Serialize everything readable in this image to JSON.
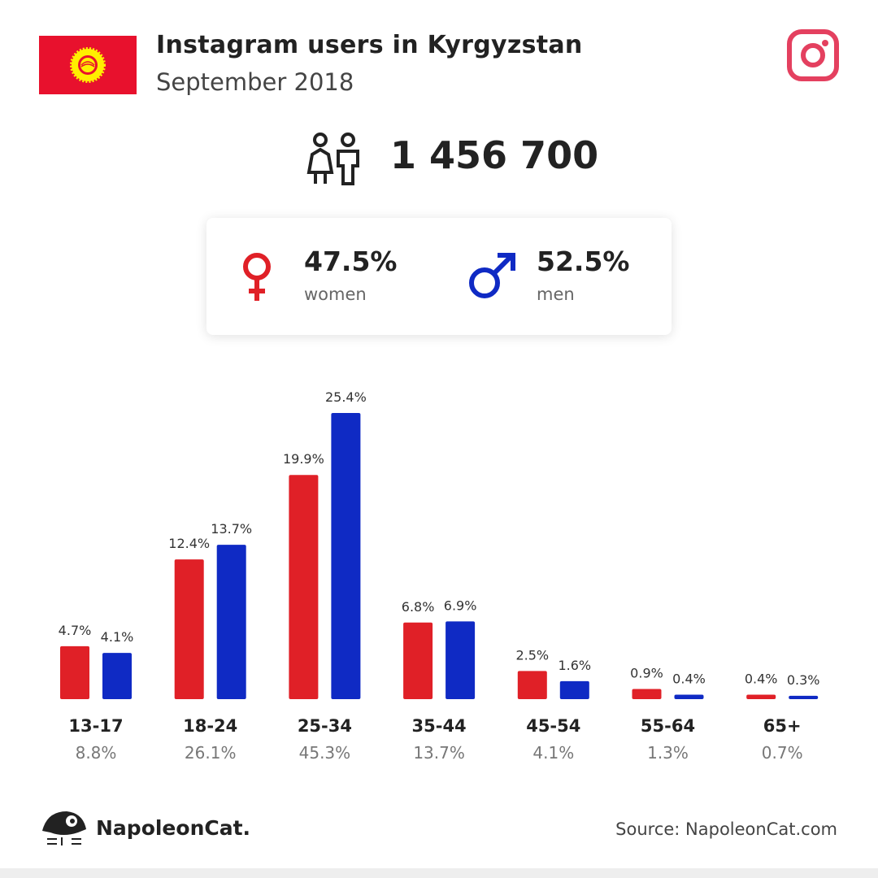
{
  "header": {
    "title": "Instagram users in Kyrgyzstan",
    "subtitle": "September 2018",
    "total": "1 456 700"
  },
  "gender": {
    "women": {
      "percent": "47.5%",
      "label": "women",
      "color": "#e02027"
    },
    "men": {
      "percent": "52.5%",
      "label": "men",
      "color": "#0f2ac4"
    }
  },
  "chart_data": {
    "type": "bar",
    "categories": [
      "13-17",
      "18-24",
      "25-34",
      "35-44",
      "45-54",
      "55-64",
      "65+"
    ],
    "totals": [
      "8.8%",
      "26.1%",
      "45.3%",
      "13.7%",
      "4.1%",
      "1.3%",
      "0.7%"
    ],
    "series": [
      {
        "color": "#e02027",
        "values": [
          4.7,
          12.4,
          19.9,
          6.8,
          2.5,
          0.9,
          0.4
        ],
        "value_labels": [
          "4.7%",
          "12.4%",
          "19.9%",
          "6.8%",
          "2.5%",
          "0.9%",
          "0.4%"
        ]
      },
      {
        "color": "#0f2ac4",
        "values": [
          4.1,
          13.7,
          25.4,
          6.9,
          1.6,
          0.4,
          0.3
        ],
        "value_labels": [
          "4.1%",
          "13.7%",
          "25.4%",
          "6.9%",
          "1.6%",
          "0.4%",
          "0.3%"
        ]
      }
    ]
  },
  "footer": {
    "brand": "NapoleonCat.",
    "source": "Source: NapoleonCat.com"
  }
}
